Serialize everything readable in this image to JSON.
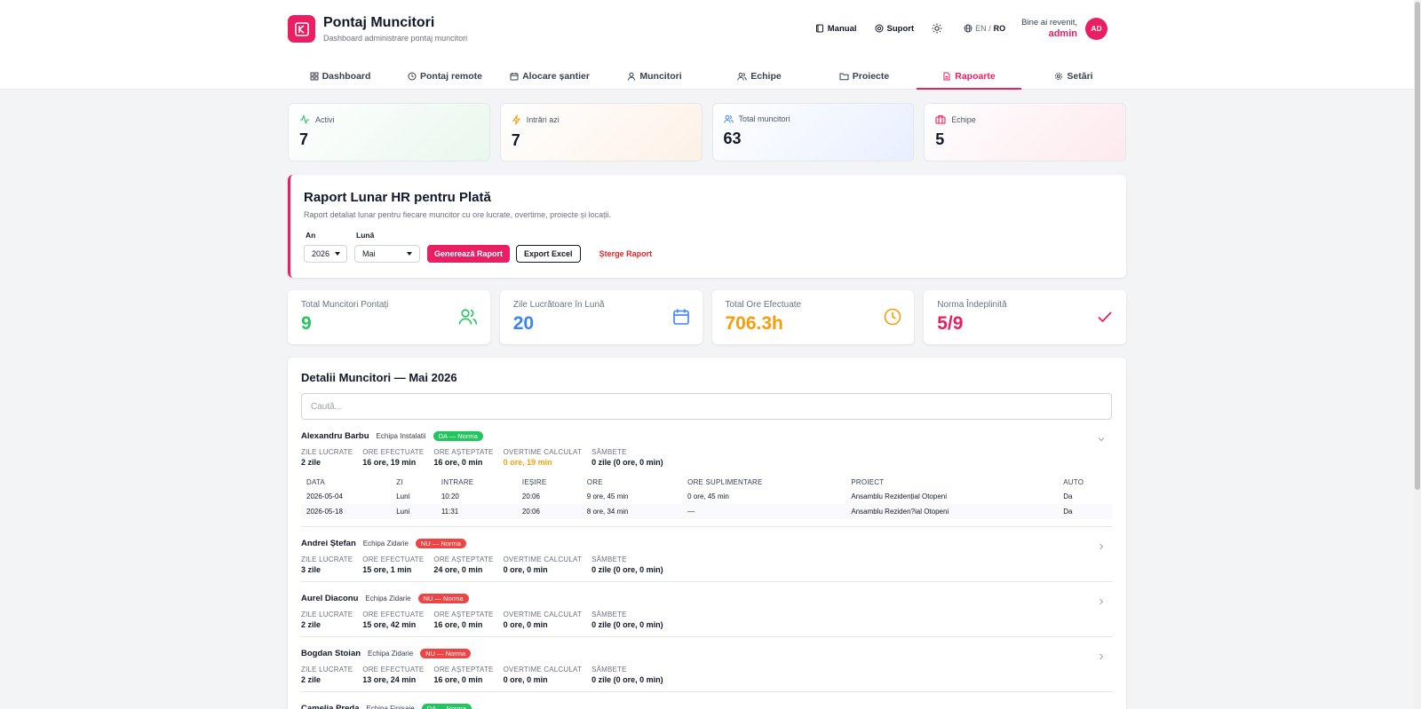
{
  "app": {
    "title": "Pontaj Muncitori",
    "subtitle": "Dashboard administrare pontaj muncitori"
  },
  "header": {
    "manual": "Manual",
    "suport": "Suport",
    "lang_en": "EN",
    "lang_sep": "/",
    "lang_ro": "RO",
    "welcome": "Bine ai revenit,",
    "user": "admin",
    "avatar": "AD"
  },
  "nav": [
    {
      "label": "Dashboard",
      "icon": "grid-icon"
    },
    {
      "label": "Pontaj remote",
      "icon": "clock-icon"
    },
    {
      "label": "Alocare șantier",
      "icon": "calendar-icon"
    },
    {
      "label": "Muncitori",
      "icon": "user-icon"
    },
    {
      "label": "Echipe",
      "icon": "users-icon"
    },
    {
      "label": "Proiecte",
      "icon": "folder-icon"
    },
    {
      "label": "Rapoarte",
      "icon": "file-icon",
      "active": true
    },
    {
      "label": "Setări",
      "icon": "gear-icon"
    }
  ],
  "stats": [
    {
      "label": "Activi",
      "value": "7",
      "icon": "activity-icon",
      "color": "#22c55e"
    },
    {
      "label": "Intrări azi",
      "value": "7",
      "icon": "bolt-icon",
      "color": "#f59e0b"
    },
    {
      "label": "Total muncitori",
      "value": "63",
      "icon": "users-icon",
      "color": "#3b82f6"
    },
    {
      "label": "Echipe",
      "value": "5",
      "icon": "briefcase-icon",
      "color": "#e91e63"
    }
  ],
  "report": {
    "title": "Raport Lunar HR pentru Plată",
    "description": "Raport detaliat lunar pentru fiecare muncitor cu ore lucrate, overtime, proiecte și locații.",
    "year_label": "An",
    "year_value": "2026",
    "month_label": "Lună",
    "month_value": "Mai",
    "generate": "Generează Raport",
    "export": "Export Excel",
    "delete": "Șterge Raport"
  },
  "kpis": [
    {
      "label": "Total Muncitori Pontați",
      "value": "9",
      "color": "#22c55e",
      "icon": "users-icon"
    },
    {
      "label": "Zile Lucrătoare în Lună",
      "value": "20",
      "color": "#3b82f6",
      "icon": "calendar-icon"
    },
    {
      "label": "Total Ore Efectuate",
      "value": "706.3h",
      "color": "#f59e0b",
      "icon": "clock-icon"
    },
    {
      "label": "Norma Îndeplinită",
      "value": "5/9",
      "color": "#e91e63",
      "icon": "check-icon"
    }
  ],
  "details": {
    "title": "Detalii Muncitori — Mai 2026",
    "search_placeholder": "Caută...",
    "stat_labels": {
      "zile": "ZILE LUCRATE",
      "efectuate": "ORE EFECTUATE",
      "asteptate": "ORE AȘTEPTATE",
      "overtime": "OVERTIME CALCULAT",
      "sambete": "SÂMBETE"
    },
    "table_headers": [
      "DATA",
      "ZI",
      "INTRARE",
      "IEȘIRE",
      "ORE",
      "ORE SUPLIMENTARE",
      "PROIECT",
      "AUTO"
    ],
    "workers": [
      {
        "name": "Alexandru Barbu",
        "team": "Echipa Instalatii",
        "badge": "DA — Norma",
        "norma": true,
        "zile": "2 zile",
        "efectuate": "16 ore, 19 min",
        "asteptate": "16 ore, 0 min",
        "overtime": "0 ore, 19 min",
        "overtime_highlight": true,
        "sambete": "0 zile (0 ore, 0 min)",
        "expanded": true,
        "shifts": [
          {
            "data": "2026-05-04",
            "zi": "Luni",
            "intrare": "10:20",
            "iesire": "20:06",
            "ore": "9 ore, 45 min",
            "supl": "0 ore, 45 min",
            "proiect": "Ansamblu Rezidențial Otopeni",
            "auto": "Da"
          },
          {
            "data": "2026-05-18",
            "zi": "Luni",
            "intrare": "11:31",
            "iesire": "20:06",
            "ore": "8 ore, 34 min",
            "supl": "—",
            "proiect": "Ansamblu Reziden?ial Otopeni",
            "auto": "Da"
          }
        ]
      },
      {
        "name": "Andrei Ștefan",
        "team": "Echipa Zidarie",
        "badge": "NU — Norma",
        "norma": false,
        "zile": "3 zile",
        "efectuate": "15 ore, 1 min",
        "asteptate": "24 ore, 0 min",
        "overtime": "0 ore, 0 min",
        "sambete": "0 zile (0 ore, 0 min)"
      },
      {
        "name": "Aurel Diaconu",
        "team": "Echipa Zidarie",
        "badge": "NU — Norma",
        "norma": false,
        "zile": "2 zile",
        "efectuate": "15 ore, 42 min",
        "asteptate": "16 ore, 0 min",
        "overtime": "0 ore, 0 min",
        "sambete": "0 zile (0 ore, 0 min)"
      },
      {
        "name": "Bogdan Stoian",
        "team": "Echipa Zidarie",
        "badge": "NU — Norma",
        "norma": false,
        "zile": "2 zile",
        "efectuate": "13 ore, 24 min",
        "asteptate": "16 ore, 0 min",
        "overtime": "0 ore, 0 min",
        "sambete": "0 zile (0 ore, 0 min)"
      },
      {
        "name": "Camelia Preda",
        "team": "Echipa Finisaje",
        "badge": "DA — Norma",
        "norma": true
      }
    ]
  }
}
